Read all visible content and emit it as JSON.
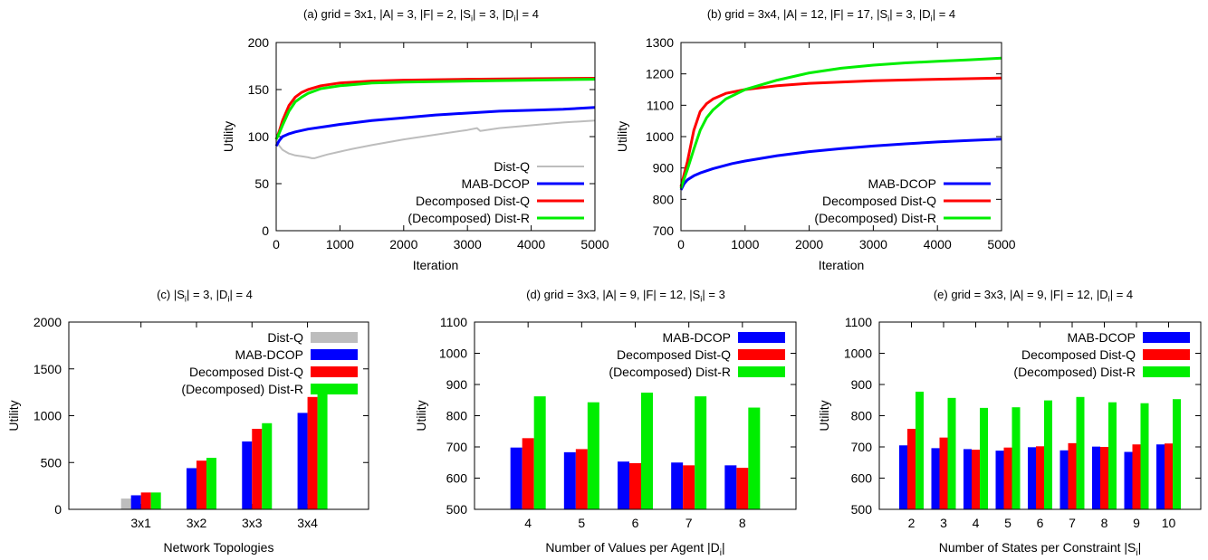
{
  "chart_data": [
    {
      "id": "a",
      "type": "line",
      "title": "(a) grid = 3x1, |A| = 3, |F| = 2, |S",
      "title_sub1": "i",
      "title_mid": "| = 3, |D",
      "title_sub2": "i",
      "title_end": "| = 4",
      "xlabel": "Iteration",
      "ylabel": "Utility",
      "xlim": [
        0,
        5000
      ],
      "ylim": [
        0,
        200
      ],
      "xticks": [
        "0",
        "1000",
        "2000",
        "3000",
        "4000",
        "5000"
      ],
      "yticks": [
        "0",
        "50",
        "100",
        "150",
        "200"
      ],
      "legend_position": "bottom-right",
      "series": [
        {
          "name": "Dist-Q",
          "color": "#bdbdbd",
          "x": [
            0,
            50,
            100,
            200,
            300,
            400,
            500,
            560,
            600,
            700,
            800,
            1000,
            1200,
            1500,
            2000,
            2500,
            3000,
            3150,
            3200,
            3500,
            4000,
            4500,
            5000
          ],
          "y": [
            96,
            90,
            86,
            82,
            80,
            79,
            78,
            77,
            77,
            79,
            81,
            84,
            87,
            91,
            97,
            102,
            107,
            109,
            106,
            109,
            112,
            115,
            117
          ]
        },
        {
          "name": "MAB-DCOP",
          "color": "#0000ff",
          "x": [
            0,
            50,
            100,
            200,
            300,
            500,
            800,
            1000,
            1500,
            2000,
            2500,
            3000,
            3500,
            4000,
            4500,
            5000
          ],
          "y": [
            90,
            96,
            100,
            103,
            105,
            108,
            111,
            113,
            117,
            120,
            123,
            125,
            127,
            128,
            129,
            131
          ]
        },
        {
          "name": "Decomposed Dist-Q",
          "color": "#ff0000",
          "x": [
            0,
            50,
            100,
            200,
            300,
            400,
            500,
            700,
            1000,
            1500,
            2000,
            3000,
            4000,
            5000
          ],
          "y": [
            97,
            106,
            117,
            133,
            142,
            147,
            150,
            154,
            157,
            159,
            160,
            161,
            161.5,
            162
          ]
        },
        {
          "name": "(Decomposed) Dist-R",
          "color": "#00ee00",
          "x": [
            0,
            50,
            100,
            200,
            300,
            400,
            500,
            700,
            1000,
            1500,
            2000,
            3000,
            4000,
            5000
          ],
          "y": [
            97,
            104,
            112,
            127,
            137,
            142,
            146,
            151,
            154,
            157,
            158,
            159,
            160,
            161
          ]
        }
      ]
    },
    {
      "id": "b",
      "type": "line",
      "title": "(b) grid = 3x4, |A| = 12, |F| = 17, |S",
      "title_sub1": "i",
      "title_mid": "| = 3, |D",
      "title_sub2": "i",
      "title_end": "| = 4",
      "xlabel": "Iteration",
      "ylabel": "Utility",
      "xlim": [
        0,
        5000
      ],
      "ylim": [
        700,
        1300
      ],
      "xticks": [
        "0",
        "1000",
        "2000",
        "3000",
        "4000",
        "5000"
      ],
      "yticks": [
        "700",
        "800",
        "900",
        "1000",
        "1100",
        "1200",
        "1300"
      ],
      "legend_position": "bottom-right",
      "series": [
        {
          "name": "MAB-DCOP",
          "color": "#0000ff",
          "x": [
            0,
            50,
            100,
            200,
            300,
            500,
            800,
            1000,
            1500,
            2000,
            2500,
            3000,
            3500,
            4000,
            4500,
            5000
          ],
          "y": [
            830,
            850,
            862,
            875,
            884,
            898,
            914,
            922,
            939,
            952,
            962,
            970,
            977,
            983,
            988,
            992
          ]
        },
        {
          "name": "Decomposed Dist-Q",
          "color": "#ff0000",
          "x": [
            0,
            50,
            100,
            200,
            300,
            400,
            500,
            700,
            1000,
            1500,
            2000,
            3000,
            4000,
            5000
          ],
          "y": [
            840,
            880,
            920,
            1020,
            1080,
            1105,
            1120,
            1138,
            1150,
            1162,
            1170,
            1178,
            1183,
            1187
          ]
        },
        {
          "name": "(Decomposed) Dist-R",
          "color": "#00ee00",
          "x": [
            0,
            50,
            100,
            200,
            300,
            400,
            500,
            700,
            1000,
            1500,
            2000,
            2500,
            3000,
            3500,
            4000,
            4500,
            5000
          ],
          "y": [
            835,
            865,
            895,
            960,
            1020,
            1060,
            1085,
            1120,
            1150,
            1180,
            1203,
            1218,
            1228,
            1235,
            1240,
            1245,
            1250
          ]
        }
      ]
    },
    {
      "id": "c",
      "type": "bar",
      "title": "(c) |S",
      "title_sub1": "i",
      "title_mid": "| = 3, |D",
      "title_sub2": "i",
      "title_end": "| = 4",
      "xlabel": "Network Topologies",
      "ylabel": "Utility",
      "ylim": [
        0,
        2000
      ],
      "yticks": [
        "0",
        "500",
        "1000",
        "1500",
        "2000"
      ],
      "categories": [
        "3x1",
        "3x2",
        "3x3",
        "3x4"
      ],
      "legend_position": "top-right",
      "series": [
        {
          "name": "Dist-Q",
          "color": "#bdbdbd",
          "values": [
            115,
            null,
            null,
            null
          ]
        },
        {
          "name": "MAB-DCOP",
          "color": "#0000ff",
          "values": [
            150,
            440,
            725,
            1030
          ]
        },
        {
          "name": "Decomposed Dist-Q",
          "color": "#ff0000",
          "values": [
            180,
            520,
            860,
            1200
          ]
        },
        {
          "name": "(Decomposed) Dist-R",
          "color": "#00ee00",
          "values": [
            180,
            550,
            920,
            1285
          ]
        }
      ]
    },
    {
      "id": "d",
      "type": "bar",
      "title": "(d) grid = 3x3, |A| = 9, |F| = 12, |S",
      "title_sub1": "i",
      "title_mid": "| = 3",
      "title_sub2": "",
      "title_end": "",
      "xlabel": "Number of Values per Agent |D",
      "xlabel_sub": "i",
      "xlabel_end": "|",
      "ylabel": "Utility",
      "ylim": [
        500,
        1100
      ],
      "yticks": [
        "500",
        "600",
        "700",
        "800",
        "900",
        "1000",
        "1100"
      ],
      "categories": [
        "4",
        "5",
        "6",
        "7",
        "8"
      ],
      "legend_position": "top-right",
      "series": [
        {
          "name": "MAB-DCOP",
          "color": "#0000ff",
          "values": [
            698,
            683,
            653,
            650,
            641
          ]
        },
        {
          "name": "Decomposed Dist-Q",
          "color": "#ff0000",
          "values": [
            728,
            693,
            648,
            641,
            633
          ]
        },
        {
          "name": "(Decomposed) Dist-R",
          "color": "#00ee00",
          "values": [
            862,
            843,
            874,
            862,
            826
          ]
        }
      ]
    },
    {
      "id": "e",
      "type": "bar",
      "title": "(e) grid = 3x3, |A| = 9, |F| = 12, |D",
      "title_sub1": "i",
      "title_mid": "| = 4",
      "title_sub2": "",
      "title_end": "",
      "xlabel": "Number of States per Constraint |S",
      "xlabel_sub": "i",
      "xlabel_end": "|",
      "ylabel": "Utility",
      "ylim": [
        500,
        1100
      ],
      "yticks": [
        "500",
        "600",
        "700",
        "800",
        "900",
        "1000",
        "1100"
      ],
      "categories": [
        "2",
        "3",
        "4",
        "5",
        "6",
        "7",
        "8",
        "9",
        "10"
      ],
      "legend_position": "top-right",
      "series": [
        {
          "name": "MAB-DCOP",
          "color": "#0000ff",
          "values": [
            705,
            696,
            693,
            688,
            699,
            689,
            701,
            684,
            708
          ]
        },
        {
          "name": "Decomposed Dist-Q",
          "color": "#ff0000",
          "values": [
            758,
            730,
            691,
            698,
            702,
            712,
            700,
            708,
            711
          ]
        },
        {
          "name": "(Decomposed) Dist-R",
          "color": "#00ee00",
          "values": [
            877,
            857,
            825,
            827,
            849,
            860,
            843,
            840,
            853
          ]
        }
      ]
    }
  ]
}
